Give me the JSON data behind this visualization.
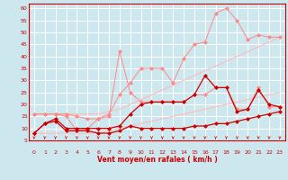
{
  "xlabel": "Vent moyen/en rafales ( km/h )",
  "background_color": "#cce8ee",
  "grid_color": "#ffffff",
  "xlim": [
    -0.5,
    23.5
  ],
  "ylim": [
    5,
    62
  ],
  "yticks": [
    5,
    10,
    15,
    20,
    25,
    30,
    35,
    40,
    45,
    50,
    55,
    60
  ],
  "xticks": [
    0,
    1,
    2,
    3,
    4,
    5,
    6,
    7,
    8,
    9,
    10,
    11,
    12,
    13,
    14,
    15,
    16,
    17,
    18,
    19,
    20,
    21,
    22,
    23
  ],
  "line_pale1_x": [
    0,
    1,
    2,
    3,
    4,
    5,
    6,
    7,
    8,
    9,
    10,
    11,
    12,
    13,
    14,
    15,
    16,
    17,
    18,
    19,
    20,
    21,
    22,
    23
  ],
  "line_pale1_y": [
    16,
    16,
    16,
    16,
    16,
    16,
    16,
    17,
    18,
    20,
    22,
    24,
    26,
    28,
    30,
    32,
    34,
    36,
    38,
    40,
    42,
    44,
    46,
    48
  ],
  "line_pale2_x": [
    0,
    1,
    2,
    3,
    4,
    5,
    6,
    7,
    8,
    9,
    10,
    11,
    12,
    13,
    14,
    15,
    16,
    17,
    18,
    19,
    20,
    21,
    22,
    23
  ],
  "line_pale2_y": [
    8,
    8,
    8,
    8,
    8,
    8,
    8,
    9,
    10,
    11,
    12,
    13,
    14,
    15,
    16,
    17,
    18,
    19,
    20,
    21,
    22,
    23,
    24,
    25
  ],
  "line_pink1_x": [
    0,
    1,
    2,
    3,
    4,
    5,
    6,
    7,
    8,
    9,
    10,
    11,
    12,
    13,
    14,
    15,
    16,
    17,
    18,
    19,
    20,
    21,
    22,
    23
  ],
  "line_pink1_y": [
    16,
    16,
    16,
    16,
    15,
    14,
    14,
    16,
    24,
    29,
    35,
    35,
    35,
    29,
    39,
    45,
    46,
    58,
    60,
    55,
    47,
    49,
    48,
    48
  ],
  "line_pink2_x": [
    0,
    1,
    2,
    3,
    4,
    5,
    6,
    7,
    8,
    9,
    10,
    11,
    12,
    13,
    14,
    15,
    16,
    17,
    18,
    19,
    20,
    21,
    22,
    23
  ],
  "line_pink2_y": [
    16,
    16,
    16,
    15,
    9,
    10,
    14,
    15,
    42,
    25,
    21,
    21,
    21,
    21,
    21,
    24,
    24,
    27,
    27,
    18,
    18,
    27,
    19,
    19
  ],
  "line_red1_x": [
    0,
    1,
    2,
    3,
    4,
    5,
    6,
    7,
    8,
    9,
    10,
    11,
    12,
    13,
    14,
    15,
    16,
    17,
    18,
    19,
    20,
    21,
    22,
    23
  ],
  "line_red1_y": [
    8,
    12,
    14,
    10,
    10,
    10,
    10,
    10,
    11,
    16,
    20,
    21,
    21,
    21,
    21,
    24,
    32,
    27,
    27,
    17,
    18,
    26,
    20,
    19
  ],
  "line_red2_x": [
    0,
    1,
    2,
    3,
    4,
    5,
    6,
    7,
    8,
    9,
    10,
    11,
    12,
    13,
    14,
    15,
    16,
    17,
    18,
    19,
    20,
    21,
    22,
    23
  ],
  "line_red2_y": [
    8,
    12,
    13,
    9,
    9,
    9,
    8,
    8,
    9,
    11,
    10,
    10,
    10,
    10,
    10,
    11,
    11,
    12,
    12,
    13,
    14,
    15,
    16,
    17
  ],
  "color_pale": "#ffbbbb",
  "color_pink": "#ff8888",
  "color_red": "#cc0000",
  "arrow_color": "#cc0000",
  "marker_size": 2.5
}
